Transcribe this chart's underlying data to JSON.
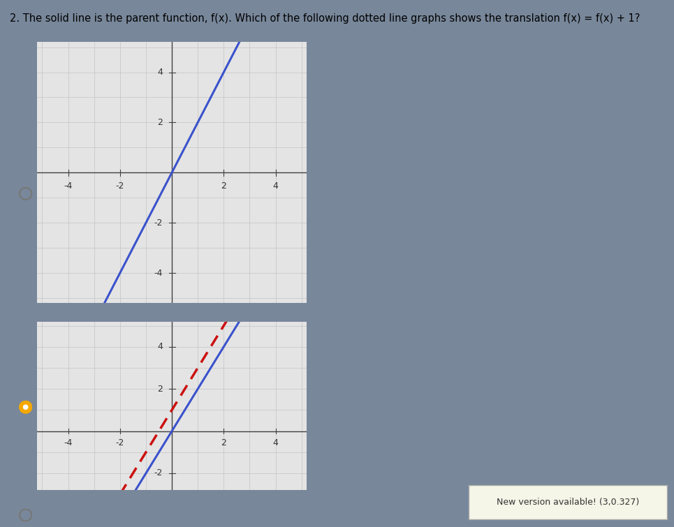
{
  "title": "2. The solid line is the parent function, f(x). Which of the following dotted line graphs shows the translation f(x) = f(x) + 1?",
  "title_fontsize": 10.5,
  "bg_color": "#78879a",
  "graph_bg_color": "#e4e4e4",
  "grid_color": "#bbbbbb",
  "axis_color": "#404040",
  "tick_label_color": "#333333",
  "slope": 2,
  "y_intercept": 0,
  "xlim": [
    -5.2,
    5.2
  ],
  "ylim": [
    -5.2,
    5.2
  ],
  "xlim2": [
    -5.2,
    5.2
  ],
  "ylim2": [
    -2.8,
    5.2
  ],
  "xticks": [
    -4,
    -2,
    2,
    4
  ],
  "yticks_top": [
    -4,
    -2,
    2,
    4
  ],
  "yticks_bot": [
    -2,
    2,
    4
  ],
  "solid_color": "#3a52cc",
  "solid_linewidth": 2.2,
  "dashed_color": "#cc1111",
  "dashed_linewidth": 2.5,
  "radio_selected_color": "#f5a800",
  "radio_unselected_color": "#777777",
  "tooltip_text": "New version available! (3,0.327)",
  "tooltip_bg": "#f5f5e8",
  "tooltip_border": "#aaaaaa",
  "tick_fontsize": 9
}
